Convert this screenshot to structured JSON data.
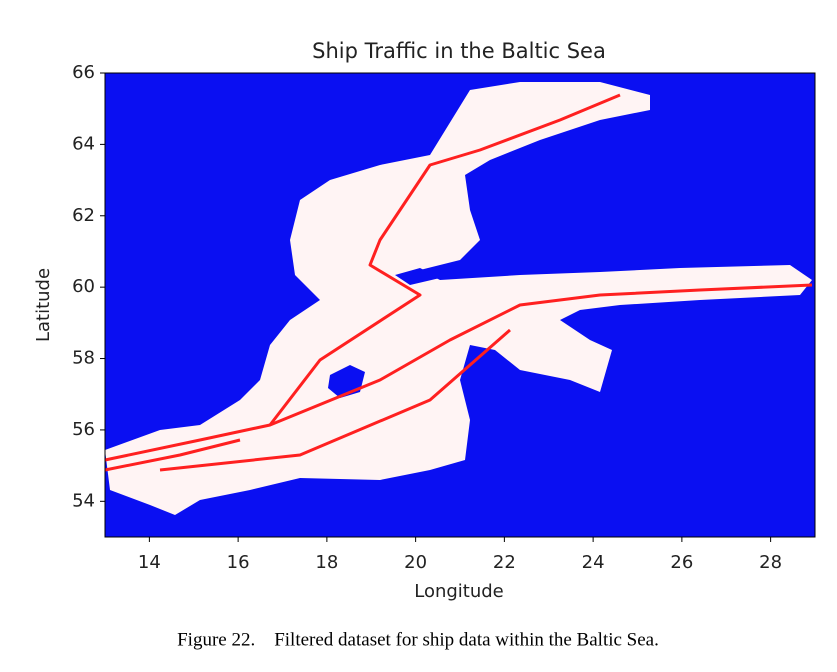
{
  "chart_data": {
    "type": "map",
    "title": "Ship Traffic in the Baltic Sea",
    "xlabel": "Longitude",
    "ylabel": "Latitude",
    "xlim": [
      13,
      29
    ],
    "ylim": [
      53,
      66
    ],
    "xticks": [
      14,
      16,
      18,
      20,
      22,
      24,
      26,
      28
    ],
    "yticks": [
      54,
      56,
      58,
      60,
      62,
      64,
      66
    ],
    "background_color": "#0a0ff2",
    "route_color": "#ff2020"
  },
  "caption": "Figure 22.    Filtered dataset for ship data within the Baltic Sea."
}
